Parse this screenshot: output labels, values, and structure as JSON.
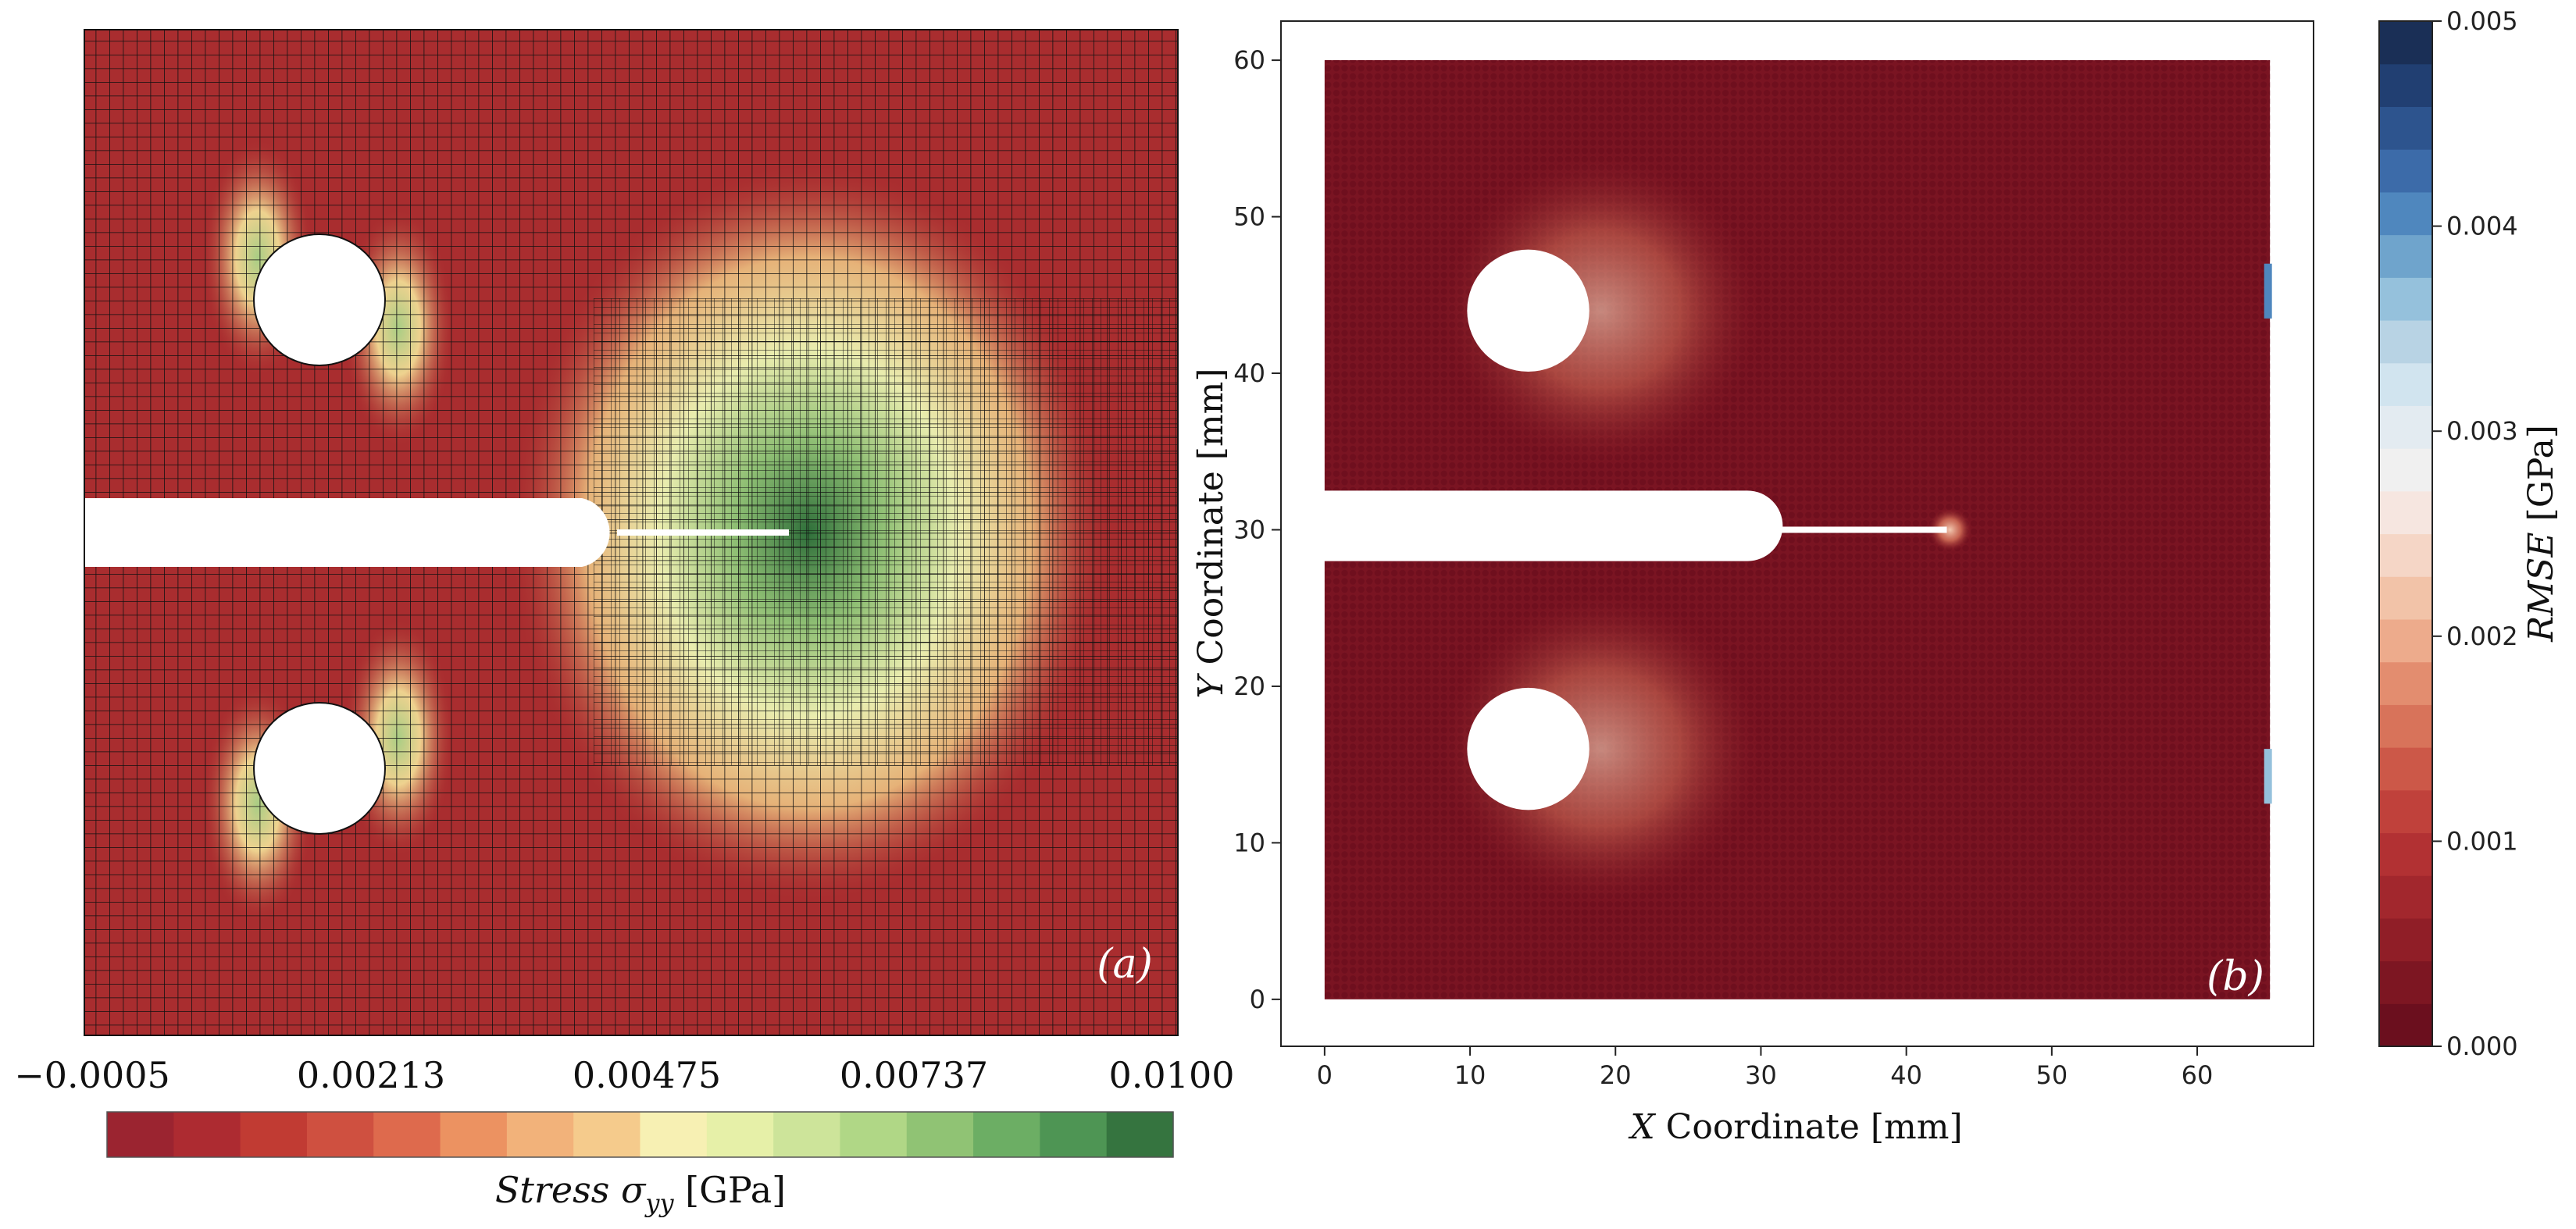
{
  "panel_a": {
    "label": "(a)",
    "colorbar": {
      "ticks": [
        "−0.0005",
        "0.00213",
        "0.00475",
        "0.00737",
        "0.0100"
      ],
      "label_italic": "Stress σ",
      "label_sub": "yy",
      "label_unit": " [GPa]",
      "colors": [
        "#9b2430",
        "#ad2b31",
        "#c13b33",
        "#cf5040",
        "#de6a4d",
        "#ec9261",
        "#f2b27a",
        "#f5cb8c",
        "#f7f0b3",
        "#e6f0a8",
        "#cde49a",
        "#b0d786",
        "#90c374",
        "#6cae64",
        "#4e9554",
        "#35743f"
      ]
    }
  },
  "panel_b": {
    "label": "(b)",
    "chart_data": {
      "type": "scatter",
      "title": "",
      "xlabel_italic": "X",
      "xlabel_rest": " Coordinate [mm]",
      "ylabel_italic": "Y",
      "ylabel_rest": " Coordinate [mm]",
      "xlim": [
        -3,
        68
      ],
      "ylim": [
        -3,
        62.5
      ],
      "xticks": [
        "0",
        "10",
        "20",
        "30",
        "40",
        "50",
        "60"
      ],
      "yticks": [
        "0",
        "10",
        "20",
        "30",
        "40",
        "50",
        "60"
      ],
      "domain": {
        "x": [
          0,
          65
        ],
        "y": [
          0,
          60
        ]
      },
      "slot": {
        "y_low": 28,
        "y_high": 32.5,
        "x_end": 31.5
      },
      "crack_tip": {
        "x": 43,
        "y": 30
      },
      "holes": [
        {
          "x": 14,
          "y": 44,
          "r": 4.2
        },
        {
          "x": 14,
          "y": 16,
          "r": 4.2
        }
      ],
      "point_color": "#6e0f1e"
    },
    "colorbar": {
      "label_italic": "RMSE",
      "label_rest": " [GPa]",
      "ticks": [
        "0.000",
        "0.001",
        "0.002",
        "0.003",
        "0.004",
        "0.005"
      ],
      "colors": [
        "#6b0f1e",
        "#7d1622",
        "#901e27",
        "#a2272d",
        "#b23133",
        "#c0413b",
        "#cc5848",
        "#d8735a",
        "#e38d6f",
        "#edab8c",
        "#f2c3a8",
        "#f5d6c6",
        "#f6e6e0",
        "#f0f0f0",
        "#e3ebf1",
        "#d1e4ef",
        "#b8d3e4",
        "#95c1dc",
        "#6fa4cc",
        "#4f87be",
        "#3c6ba9",
        "#2d548e",
        "#213f72",
        "#1a2f56"
      ]
    }
  }
}
